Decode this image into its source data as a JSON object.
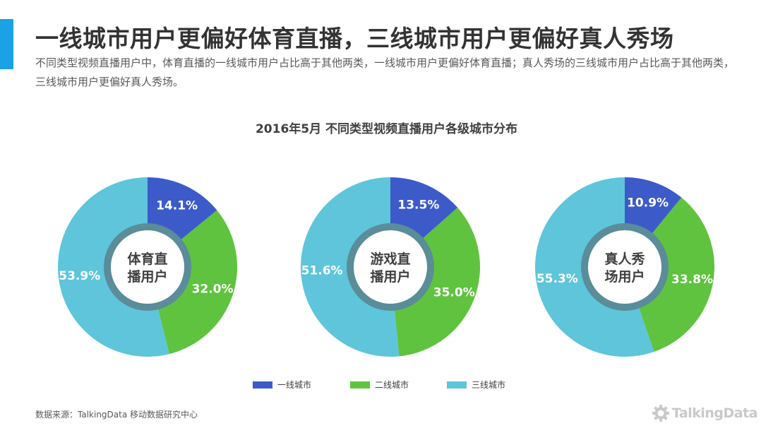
{
  "header": {
    "title": "一线城市用户更偏好体育直播，三线城市用户更偏好真人秀场",
    "subtitle": "不同类型视频直播用户中，体育直播的一线城市用户占比高于其他两类，一线城市用户更偏好体育直播；真人秀场的三线城市用户占比高于其他两类，三线城市用户更偏好真人秀场。",
    "accent_color": "#1aa1e6"
  },
  "chart_data": {
    "type": "pie",
    "title": "2016年5月  不同类型视频直播用户各级城市分布",
    "series_names": [
      "一线城市",
      "二线城市",
      "三线城市"
    ],
    "colors": [
      "#3c5bc9",
      "#5fc33f",
      "#5ec5db"
    ],
    "ring_color": "#5a8c99",
    "charts": [
      {
        "name": "体育直播用户",
        "center_lines": [
          "体育直",
          "播用户"
        ],
        "values": [
          14.1,
          32.0,
          53.9
        ],
        "labels": [
          "14.1%",
          "32.0%",
          "53.9%"
        ]
      },
      {
        "name": "游戏直播用户",
        "center_lines": [
          "游戏直",
          "播用户"
        ],
        "values": [
          13.5,
          35.0,
          51.6
        ],
        "labels": [
          "13.5%",
          "35.0%",
          "51.6%"
        ]
      },
      {
        "name": "真人秀场用户",
        "center_lines": [
          "真人秀",
          "场用户"
        ],
        "values": [
          10.9,
          33.8,
          55.3
        ],
        "labels": [
          "10.9%",
          "33.8%",
          "55.3%"
        ]
      }
    ]
  },
  "legend": {
    "items": [
      {
        "label": "一线城市",
        "color": "#3c5bc9"
      },
      {
        "label": "二线城市",
        "color": "#5fc33f"
      },
      {
        "label": "三线城市",
        "color": "#5ec5db"
      }
    ]
  },
  "footer": {
    "source": "数据来源：TalkingData 移动数据研究中心",
    "logo_text": "TalkingData",
    "logo_icon": "talkingdata-gear-logo-icon"
  }
}
